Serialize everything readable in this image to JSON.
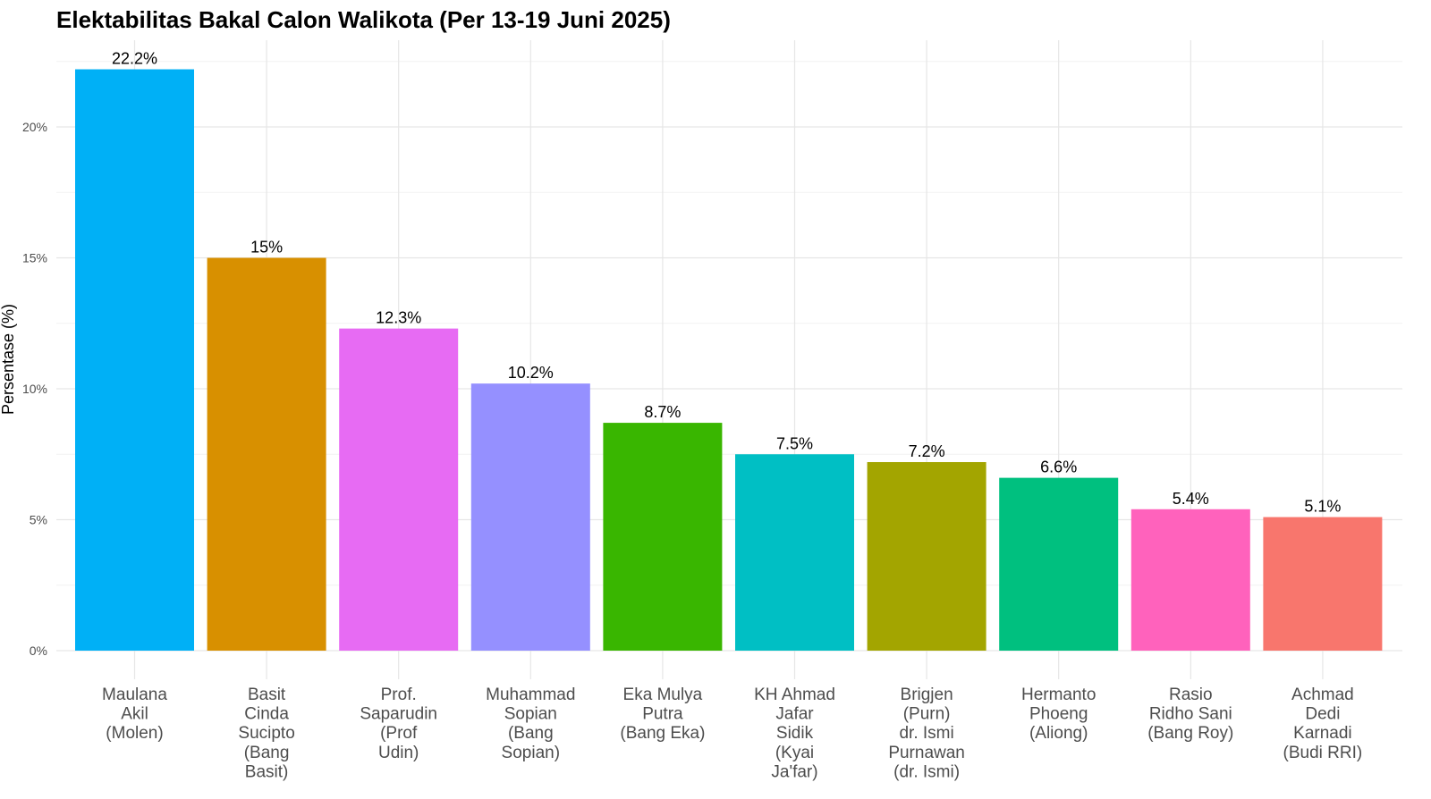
{
  "chart_data": {
    "type": "bar",
    "title": "Elektabilitas Bakal Calon Walikota (Per 13-19 Juni 2025)",
    "xlabel": "",
    "ylabel": "Persentase (%)",
    "ylim": [
      0,
      23
    ],
    "yticks": [
      0,
      5,
      10,
      15,
      20
    ],
    "ytick_labels": [
      "0%",
      "5%",
      "10%",
      "15%",
      "20%"
    ],
    "grid": true,
    "legend": "none",
    "categories": [
      [
        "Maulana",
        "Akil",
        "(Molen)"
      ],
      [
        "Basit",
        "Cinda",
        "Sucipto",
        "(Bang",
        "Basit)"
      ],
      [
        "Prof.",
        "Saparudin",
        "(Prof",
        "Udin)"
      ],
      [
        "Muhammad",
        "Sopian",
        "(Bang",
        "Sopian)"
      ],
      [
        "Eka Mulya",
        "Putra",
        "(Bang Eka)"
      ],
      [
        "KH Ahmad",
        "Jafar",
        "Sidik",
        "(Kyai",
        "Ja'far)"
      ],
      [
        "Brigjen",
        "(Purn)",
        "dr. Ismi",
        "Purnawan",
        "(dr. Ismi)"
      ],
      [
        "Hermanto",
        "Phoeng",
        "(Aliong)"
      ],
      [
        "Rasio",
        "Ridho Sani",
        "(Bang Roy)"
      ],
      [
        "Achmad",
        "Dedi",
        "Karnadi",
        "(Budi RRI)"
      ]
    ],
    "values": [
      22.2,
      15,
      12.3,
      10.2,
      8.7,
      7.5,
      7.2,
      6.6,
      5.4,
      5.1
    ],
    "data_labels": [
      "22.2%",
      "15%",
      "12.3%",
      "10.2%",
      "8.7%",
      "7.5%",
      "7.2%",
      "6.6%",
      "5.4%",
      "5.1%"
    ],
    "colors": [
      "#00B0F6",
      "#D89000",
      "#E76BF3",
      "#9590FF",
      "#39B600",
      "#00BFC4",
      "#A3A500",
      "#00C07F",
      "#FF62BC",
      "#F8766D"
    ]
  }
}
